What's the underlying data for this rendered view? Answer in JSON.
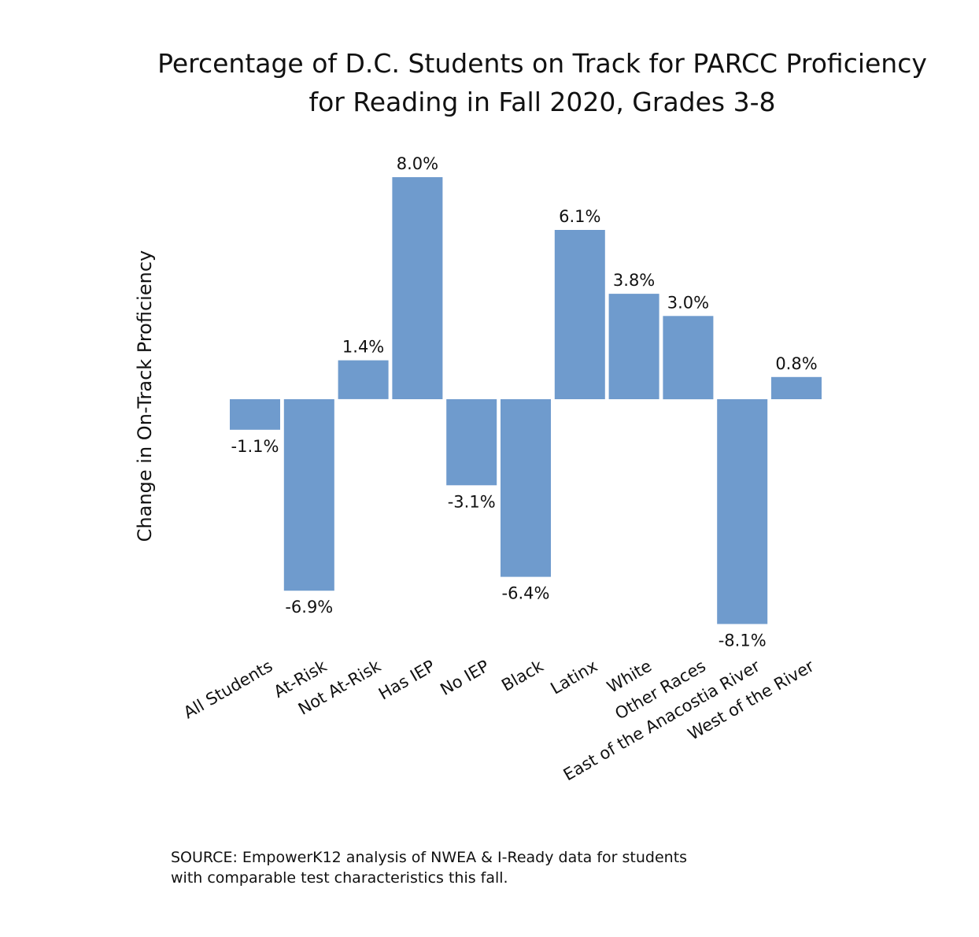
{
  "chart_data": {
    "type": "bar",
    "title_lines": [
      "Percentage of D.C. Students on Track for PARCC Proficiency",
      "for Reading in Fall 2020, Grades 3-8"
    ],
    "ylabel": "Change in On-Track Proficiency",
    "xlabel": "",
    "bar_color": "#6f9bcd",
    "categories": [
      "All Students",
      "At-Risk",
      "Not At-Risk",
      "Has IEP",
      "No IEP",
      "Black",
      "Latinx",
      "White",
      "Other Races",
      "East of the Anacostia River",
      "West of the River"
    ],
    "values": [
      -1.1,
      -6.9,
      1.4,
      8.0,
      -3.1,
      -6.4,
      6.1,
      3.8,
      3.0,
      -8.1,
      0.8
    ],
    "value_labels": [
      "-1.1%",
      "-6.9%",
      "1.4%",
      "8.0%",
      "-3.1%",
      "-6.4%",
      "6.1%",
      "3.8%",
      "3.0%",
      "-8.1%",
      "0.8%"
    ],
    "ylim": [
      -8.1,
      8.0
    ],
    "grid": false,
    "legend": "none"
  },
  "source": {
    "lines": [
      "SOURCE: EmpowerK12 analysis of NWEA & I-Ready data for students",
      "with comparable test characteristics this fall."
    ]
  }
}
